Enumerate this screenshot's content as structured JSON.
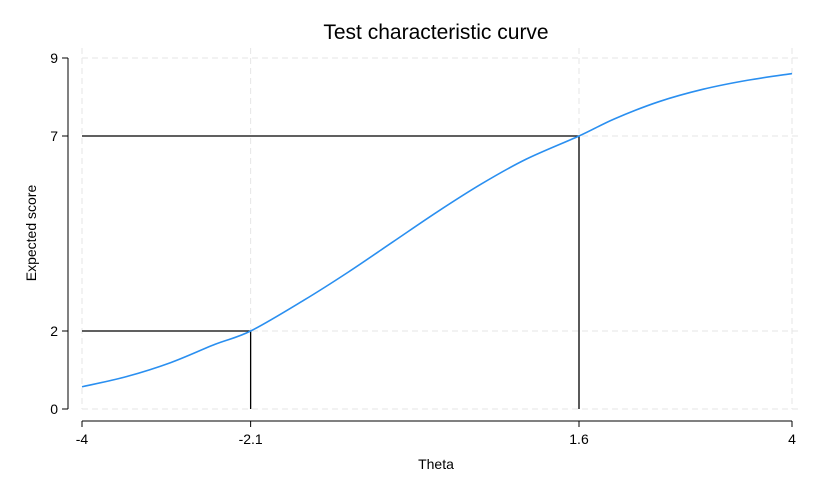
{
  "chart_data": {
    "type": "line",
    "title": "Test characteristic curve",
    "xlabel": "Theta",
    "ylabel": "Expected score",
    "xlim": [
      -4,
      4
    ],
    "ylim": [
      0,
      9
    ],
    "x_ticks": [
      -4,
      -2.1,
      1.6,
      4
    ],
    "x_tick_labels": [
      "-4",
      "-2.1",
      "1.6",
      "4"
    ],
    "y_ticks": [
      0,
      2,
      7,
      9
    ],
    "y_tick_labels": [
      "0",
      "2",
      "7",
      "9"
    ],
    "grid": true,
    "legend": "none",
    "series": [
      {
        "color": "#2a8ff0",
        "x": [
          -4.0,
          -3.5,
          -3.0,
          -2.5,
          -2.1,
          -1.5,
          -1.0,
          -0.5,
          0.0,
          0.5,
          1.0,
          1.6,
          2.0,
          2.5,
          3.0,
          3.5,
          4.0
        ],
        "y": [
          0.57,
          0.83,
          1.19,
          1.66,
          2.0,
          2.79,
          3.51,
          4.28,
          5.05,
          5.77,
          6.4,
          7.0,
          7.44,
          7.88,
          8.2,
          8.43,
          8.6
        ]
      }
    ],
    "reference_lines": [
      {
        "theta": -2.1,
        "score": 2
      },
      {
        "theta": 1.6,
        "score": 7
      }
    ]
  }
}
